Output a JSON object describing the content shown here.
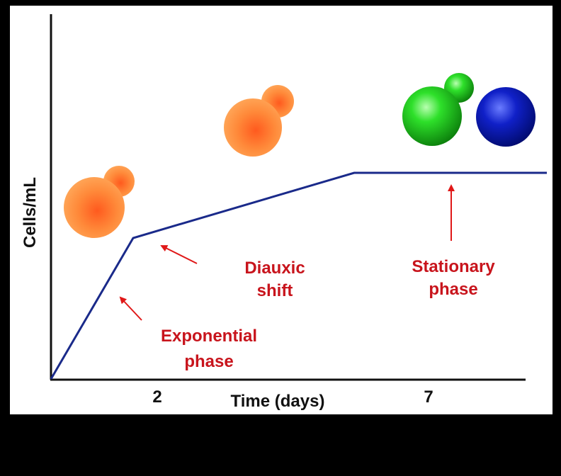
{
  "diagram": {
    "y_axis_label": "Cells/mL",
    "x_axis_label": "Time (days)",
    "x_tick_labels": [
      "2",
      "7"
    ],
    "annotations": [
      {
        "lines": [
          "Exponential",
          "phase"
        ]
      },
      {
        "lines": [
          "Diauxic",
          "shift"
        ]
      },
      {
        "lines": [
          "Stationary",
          "phase"
        ]
      }
    ]
  }
}
